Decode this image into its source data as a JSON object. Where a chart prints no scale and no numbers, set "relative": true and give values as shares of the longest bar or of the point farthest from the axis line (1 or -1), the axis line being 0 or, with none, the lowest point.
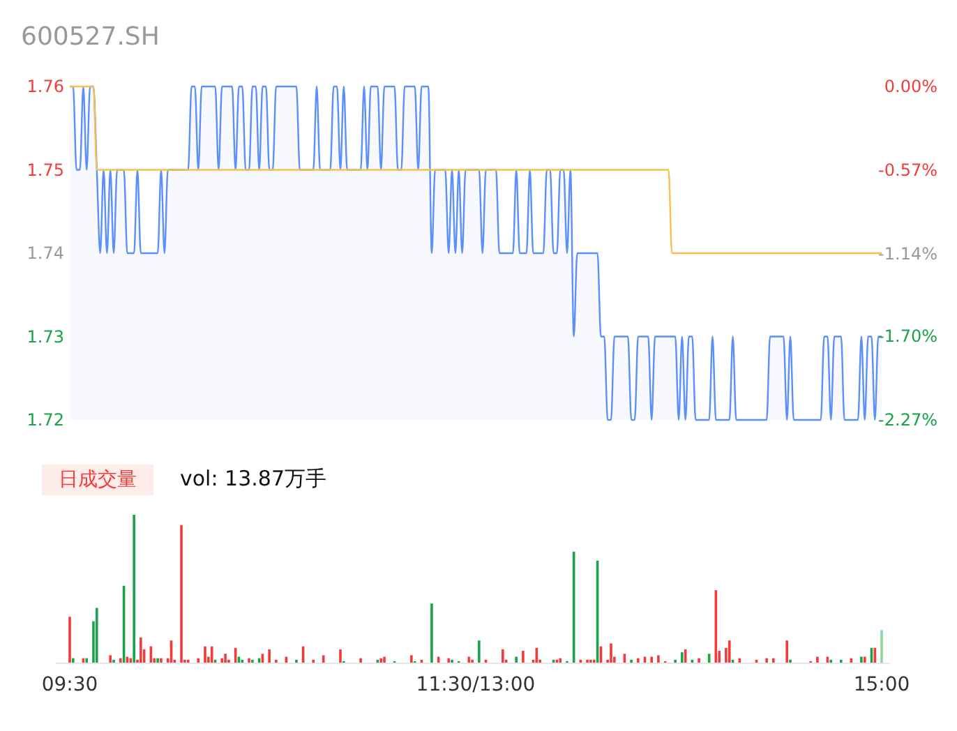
{
  "chart_data": [
    {
      "type": "line",
      "title": "600527.SH",
      "ylim": [
        1.72,
        1.76
      ],
      "yticks": [
        1.72,
        1.73,
        1.74,
        1.75,
        1.76
      ],
      "y2lim": [
        -2.27,
        0
      ],
      "y2ticks": [
        {
          "value": -2.27,
          "label": "-2.27%"
        },
        {
          "value": -1.7,
          "label": "-1.70%"
        },
        {
          "value": -1.14,
          "label": "-1.14%"
        },
        {
          "value": -0.57,
          "label": "-0.57%"
        },
        {
          "value": 0,
          "label": "0.00%"
        }
      ],
      "categories": [
        null,
        null,
        null,
        null,
        null,
        null,
        null,
        null,
        null,
        null,
        null,
        null,
        null,
        null,
        null,
        null,
        null,
        null,
        null,
        null,
        null,
        null,
        null,
        null,
        null,
        null,
        null,
        null,
        null,
        null,
        null,
        null,
        null,
        null,
        null,
        null,
        null,
        null,
        null,
        null,
        null,
        null,
        null,
        null,
        null,
        null,
        null,
        null,
        null,
        null,
        null,
        null,
        null,
        null,
        null,
        null,
        null,
        null,
        null,
        null,
        null,
        null,
        null,
        null,
        null,
        null,
        null,
        null,
        null,
        null,
        null,
        null,
        null,
        null,
        null,
        null,
        null,
        null,
        null,
        null,
        null,
        null,
        null,
        null,
        null,
        null,
        null,
        null,
        null,
        null,
        null,
        null,
        null,
        null,
        null,
        null,
        null,
        null,
        null,
        null,
        null,
        null,
        null,
        null,
        null,
        null,
        null,
        null,
        null,
        null,
        null,
        null,
        null,
        null,
        null,
        null,
        null,
        null,
        null,
        null,
        null,
        null,
        null,
        null,
        null,
        null,
        null,
        null,
        null,
        null,
        null,
        null,
        null,
        null,
        null,
        null,
        null,
        null,
        null,
        null,
        null,
        null,
        null,
        null,
        null,
        null,
        null,
        null,
        null,
        null,
        null,
        null,
        null,
        null,
        null,
        null,
        null,
        null,
        null,
        null,
        null,
        null,
        null,
        null,
        null,
        null,
        null,
        null,
        null,
        null,
        null,
        null,
        null,
        null,
        null,
        null,
        null,
        null,
        null,
        null,
        null,
        null,
        null,
        null,
        null,
        null,
        null,
        null,
        null,
        null,
        null,
        null,
        null,
        null,
        null,
        null,
        null,
        null,
        null,
        null,
        null,
        null,
        null,
        null,
        null,
        null,
        null,
        null,
        null,
        null,
        null,
        null,
        null,
        null,
        null,
        null,
        null,
        null,
        null,
        null,
        null,
        null,
        null,
        null,
        null,
        null,
        null,
        null,
        null,
        null,
        null,
        null,
        null,
        null,
        null,
        null,
        null,
        null,
        null,
        null,
        null
      ],
      "series": [
        {
          "type": "area",
          "color": "#5b8ff9",
          "values": [
            1.76,
            1.76,
            1.75,
            1.75,
            1.76,
            1.75,
            1.76,
            1.76,
            1.75,
            1.74,
            1.75,
            1.74,
            1.75,
            1.74,
            1.75,
            1.75,
            1.75,
            1.74,
            1.74,
            1.74,
            1.75,
            1.74,
            1.74,
            1.74,
            1.74,
            1.74,
            1.74,
            1.75,
            1.74,
            1.75,
            1.75,
            1.75,
            1.75,
            1.75,
            1.75,
            1.75,
            1.76,
            1.76,
            1.75,
            1.76,
            1.76,
            1.76,
            1.76,
            1.76,
            1.75,
            1.76,
            1.76,
            1.76,
            1.76,
            1.75,
            1.76,
            1.76,
            1.75,
            1.75,
            1.76,
            1.76,
            1.75,
            1.76,
            1.76,
            1.75,
            1.75,
            1.76,
            1.76,
            1.76,
            1.76,
            1.76,
            1.76,
            1.76,
            1.75,
            1.75,
            1.75,
            1.75,
            1.75,
            1.76,
            1.75,
            1.75,
            1.75,
            1.75,
            1.76,
            1.76,
            1.75,
            1.76,
            1.75,
            1.75,
            1.75,
            1.75,
            1.75,
            1.76,
            1.75,
            1.76,
            1.76,
            1.76,
            1.75,
            1.76,
            1.76,
            1.76,
            1.76,
            1.75,
            1.75,
            1.76,
            1.76,
            1.76,
            1.76,
            1.75,
            1.76,
            1.76,
            1.76,
            1.74,
            1.75,
            1.75,
            1.75,
            1.75,
            1.74,
            1.75,
            1.74,
            1.75,
            1.74,
            1.75,
            1.75,
            1.75,
            1.75,
            1.75,
            1.74,
            1.75,
            1.75,
            1.75,
            1.75,
            1.74,
            1.74,
            1.74,
            1.74,
            1.74,
            1.75,
            1.74,
            1.74,
            1.74,
            1.75,
            1.74,
            1.74,
            1.74,
            1.74,
            1.75,
            1.75,
            1.74,
            1.74,
            1.75,
            1.75,
            1.74,
            1.75,
            1.73,
            1.74,
            1.74,
            1.74,
            1.74,
            1.74,
            1.74,
            1.74,
            1.73,
            1.73,
            1.72,
            1.72,
            1.73,
            1.73,
            1.73,
            1.73,
            1.73,
            1.72,
            1.72,
            1.73,
            1.73,
            1.73,
            1.73,
            1.72,
            1.73,
            1.73,
            1.73,
            1.73,
            1.73,
            1.73,
            1.73,
            1.72,
            1.73,
            1.72,
            1.73,
            1.73,
            1.72,
            1.72,
            1.72,
            1.72,
            1.72,
            1.73,
            1.72,
            1.72,
            1.72,
            1.72,
            1.72,
            1.73,
            1.72,
            1.72,
            1.72,
            1.72,
            1.72,
            1.72,
            1.72,
            1.72,
            1.72,
            1.72,
            1.73,
            1.73,
            1.73,
            1.73,
            1.73,
            1.72,
            1.73,
            1.72,
            1.72,
            1.72,
            1.72,
            1.72,
            1.72,
            1.72,
            1.72,
            1.72,
            1.73,
            1.73,
            1.72,
            1.73,
            1.73,
            1.73,
            1.72,
            1.72,
            1.72,
            1.72,
            1.72,
            1.73,
            1.72,
            1.73,
            1.73,
            1.72,
            1.73,
            1.73
          ]
        },
        {
          "type": "line",
          "color": "#f8c04e",
          "values": [
            1.76,
            1.76,
            1.76,
            1.76,
            1.76,
            1.76,
            1.76,
            1.76,
            1.75,
            1.75,
            1.75,
            1.75,
            1.75,
            1.75,
            1.75,
            1.75,
            1.75,
            1.75,
            1.75,
            1.75,
            1.75,
            1.75,
            1.75,
            1.75,
            1.75,
            1.75,
            1.75,
            1.75,
            1.75,
            1.75,
            1.75,
            1.75,
            1.75,
            1.75,
            1.75,
            1.75,
            1.75,
            1.75,
            1.75,
            1.75,
            1.75,
            1.75,
            1.75,
            1.75,
            1.75,
            1.75,
            1.75,
            1.75,
            1.75,
            1.75,
            1.75,
            1.75,
            1.75,
            1.75,
            1.75,
            1.75,
            1.75,
            1.75,
            1.75,
            1.75,
            1.75,
            1.75,
            1.75,
            1.75,
            1.75,
            1.75,
            1.75,
            1.75,
            1.75,
            1.75,
            1.75,
            1.75,
            1.75,
            1.75,
            1.75,
            1.75,
            1.75,
            1.75,
            1.75,
            1.75,
            1.75,
            1.75,
            1.75,
            1.75,
            1.75,
            1.75,
            1.75,
            1.75,
            1.75,
            1.75,
            1.75,
            1.75,
            1.75,
            1.75,
            1.75,
            1.75,
            1.75,
            1.75,
            1.75,
            1.75,
            1.75,
            1.75,
            1.75,
            1.75,
            1.75,
            1.75,
            1.75,
            1.75,
            1.75,
            1.75,
            1.75,
            1.75,
            1.75,
            1.75,
            1.75,
            1.75,
            1.75,
            1.75,
            1.75,
            1.75,
            1.75,
            1.75,
            1.75,
            1.75,
            1.75,
            1.75,
            1.75,
            1.75,
            1.75,
            1.75,
            1.75,
            1.75,
            1.75,
            1.75,
            1.75,
            1.75,
            1.75,
            1.75,
            1.75,
            1.75,
            1.75,
            1.75,
            1.75,
            1.75,
            1.75,
            1.75,
            1.75,
            1.75,
            1.75,
            1.75,
            1.75,
            1.75,
            1.75,
            1.75,
            1.75,
            1.75,
            1.75,
            1.75,
            1.75,
            1.75,
            1.75,
            1.75,
            1.75,
            1.75,
            1.75,
            1.75,
            1.75,
            1.75,
            1.75,
            1.75,
            1.75,
            1.75,
            1.75,
            1.75,
            1.75,
            1.75,
            1.75,
            1.75,
            1.74,
            1.74,
            1.74,
            1.74,
            1.74,
            1.74,
            1.74,
            1.74,
            1.74,
            1.74,
            1.74,
            1.74,
            1.74,
            1.74,
            1.74,
            1.74,
            1.74,
            1.74,
            1.74,
            1.74,
            1.74,
            1.74,
            1.74,
            1.74,
            1.74,
            1.74,
            1.74,
            1.74,
            1.74,
            1.74,
            1.74,
            1.74,
            1.74,
            1.74,
            1.74,
            1.74,
            1.74,
            1.74,
            1.74,
            1.74,
            1.74,
            1.74,
            1.74,
            1.74,
            1.74,
            1.74,
            1.74,
            1.74,
            1.74,
            1.74,
            1.74,
            1.74,
            1.74,
            1.74,
            1.74,
            1.74,
            1.74,
            1.74,
            1.74,
            1.74,
            1.74,
            1.74,
            1.74
          ]
        }
      ]
    },
    {
      "type": "bar",
      "title": "日成交量",
      "subtitle": "vol: 13.87万手",
      "relative": true,
      "categories": [
        "09:30",
        null,
        null,
        null,
        null,
        null,
        null,
        null,
        null,
        null,
        null,
        null,
        null,
        null,
        null,
        null,
        null,
        null,
        null,
        null,
        null,
        null,
        null,
        null,
        null,
        null,
        null,
        null,
        null,
        null,
        null,
        null,
        null,
        null,
        null,
        null,
        null,
        null,
        null,
        null,
        null,
        null,
        null,
        null,
        null,
        null,
        null,
        null,
        null,
        null,
        null,
        null,
        null,
        null,
        null,
        null,
        null,
        null,
        null,
        null,
        null,
        null,
        null,
        null,
        null,
        null,
        null,
        null,
        null,
        null,
        null,
        null,
        null,
        null,
        null,
        null,
        null,
        null,
        null,
        null,
        null,
        null,
        null,
        null,
        null,
        null,
        null,
        null,
        null,
        null,
        null,
        null,
        null,
        null,
        null,
        null,
        null,
        null,
        null,
        null,
        null,
        null,
        null,
        null,
        null,
        null,
        null,
        null,
        null,
        null,
        null,
        null,
        null,
        null,
        null,
        null,
        null,
        null,
        null,
        null,
        "11:30/13:00",
        null,
        null,
        null,
        null,
        null,
        null,
        null,
        null,
        null,
        null,
        null,
        null,
        null,
        null,
        null,
        null,
        null,
        null,
        null,
        null,
        null,
        null,
        null,
        null,
        null,
        null,
        null,
        null,
        null,
        null,
        null,
        null,
        null,
        null,
        null,
        null,
        null,
        null,
        null,
        null,
        null,
        null,
        null,
        null,
        null,
        null,
        null,
        null,
        null,
        null,
        null,
        null,
        null,
        null,
        null,
        null,
        null,
        null,
        null,
        null,
        null,
        null,
        null,
        null,
        null,
        null,
        null,
        null,
        null,
        null,
        null,
        null,
        null,
        null,
        null,
        null,
        null,
        null,
        null,
        null,
        null,
        null,
        null,
        null,
        null,
        null,
        null,
        null,
        null,
        null,
        null,
        null,
        null,
        null,
        null,
        null,
        null,
        null,
        null,
        null,
        null,
        null,
        null,
        null,
        null,
        null,
        null,
        null,
        null,
        null,
        null,
        null,
        null,
        null,
        null,
        null,
        null,
        null,
        null,
        "15:00"
      ],
      "values": [
        0.31,
        0.03,
        null,
        null,
        0.03,
        0.03,
        null,
        0.28,
        0.37,
        null,
        null,
        null,
        0.05,
        0.02,
        null,
        0.03,
        0.52,
        0.04,
        0.03,
        1,
        0.02,
        0.17,
        0.09,
        null,
        0.11,
        0.03,
        0.03,
        0.03,
        null,
        0.03,
        0.15,
        0.02,
        null,
        0.93,
        0.02,
        0.02,
        null,
        null,
        0.03,
        null,
        0.11,
        0.04,
        0.11,
        0.02,
        null,
        0.03,
        0.06,
        0.02,
        null,
        0.1,
        0.04,
        0.02,
        null,
        0.03,
        0.02,
        null,
        0.03,
        0.06,
        null,
        0.09,
        null,
        0.02,
        null,
        null,
        0.04,
        null,
        null,
        0.02,
        null,
        0.11,
        null,
        null,
        0.02,
        null,
        null,
        0.05,
        null,
        null,
        null,
        null,
        0.09,
        0.01,
        null,
        null,
        null,
        null,
        0.03,
        null,
        null,
        null,
        null,
        0.02,
        0.03,
        0.04,
        null,
        null,
        0.01,
        null,
        null,
        null,
        null,
        0.05,
        0.01,
        null,
        0.02,
        null,
        null,
        0.4,
        null,
        0.04,
        null,
        null,
        0.03,
        0.02,
        null,
        0.01,
        null,
        null,
        0.04,
        0.02,
        null,
        0.15,
        null,
        0.02,
        null,
        null,
        null,
        null,
        0.09,
        0.02,
        null,
        null,
        0.04,
        null,
        0.08,
        null,
        null,
        0.02,
        0.1,
        0.02,
        null,
        null,
        null,
        0.02,
        0.02,
        0.03,
        null,
        0.01,
        null,
        0.75,
        null,
        0.02,
        null,
        0.02,
        0.02,
        0.02,
        0.69,
        0.11,
        null,
        0.02,
        0.13,
        0.04,
        null,
        null,
        0.06,
        null,
        0.02,
        null,
        0.03,
        null,
        0.04,
        null,
        0.04,
        null,
        0.05,
        null,
        0.01,
        null,
        null,
        0.02,
        null,
        0.07,
        0.09,
        null,
        0.02,
        null,
        0.03,
        null,
        null,
        0.06,
        null,
        0.49,
        0.08,
        null,
        0.1,
        0.15,
        0.02,
        null,
        0.03,
        null,
        null,
        null,
        null,
        0.02,
        null,
        null,
        0.03,
        null,
        0.03,
        null,
        null,
        null,
        0.15,
        0.02,
        null,
        null,
        null,
        null,
        null,
        0.01,
        null,
        0.04,
        null,
        null,
        0.04,
        0.02,
        null,
        null,
        0.02,
        null,
        null,
        0.03,
        null,
        null,
        0.04,
        0.04,
        null,
        0.1,
        0.1,
        null,
        0.22
      ],
      "colors": [
        "#f23c3c",
        "#1aa34a",
        null,
        null,
        "#f23c3c",
        "#1aa34a",
        null,
        "#1aa34a",
        "#1aa34a",
        null,
        null,
        null,
        "#f23c3c",
        "#1aa34a",
        null,
        "#f23c3c",
        "#1aa34a",
        "#f23c3c",
        "#f23c3c",
        "#1aa34a",
        "#f23c3c",
        "#f23c3c",
        "#f23c3c",
        null,
        "#f23c3c",
        "#f23c3c",
        "#1aa34a",
        "#f23c3c",
        null,
        "#f23c3c",
        "#f23c3c",
        "#f23c3c",
        null,
        "#f23c3c",
        "#f23c3c",
        "#f23c3c",
        null,
        null,
        "#f23c3c",
        null,
        "#f23c3c",
        "#f23c3c",
        "#f23c3c",
        "#1aa34a",
        null,
        "#f23c3c",
        "#f23c3c",
        "#f23c3c",
        null,
        "#f23c3c",
        "#1aa34a",
        "#1aa34a",
        null,
        "#f23c3c",
        "#1aa34a",
        null,
        "#1aa34a",
        "#f23c3c",
        null,
        "#f23c3c",
        null,
        "#f23c3c",
        null,
        null,
        "#f23c3c",
        null,
        null,
        "#1aa34a",
        null,
        "#f23c3c",
        null,
        null,
        "#f23c3c",
        null,
        null,
        "#f23c3c",
        null,
        null,
        null,
        null,
        "#f23c3c",
        "#1aa34a",
        null,
        null,
        null,
        null,
        "#f23c3c",
        null,
        null,
        null,
        null,
        "#1aa34a",
        "#f23c3c",
        "#f23c3c",
        null,
        null,
        "#1aa34a",
        null,
        null,
        null,
        null,
        "#f23c3c",
        "#1aa34a",
        null,
        "#f23c3c",
        null,
        null,
        "#1aa34a",
        null,
        "#f23c3c",
        null,
        null,
        "#f23c3c",
        "#1aa34a",
        null,
        "#1aa34a",
        null,
        null,
        "#f23c3c",
        "#f23c3c",
        null,
        "#1aa34a",
        null,
        "#f23c3c",
        null,
        null,
        null,
        null,
        "#f23c3c",
        "#f23c3c",
        null,
        null,
        "#1aa34a",
        null,
        "#f23c3c",
        null,
        null,
        "#f23c3c",
        "#f23c3c",
        "#f23c3c",
        null,
        null,
        null,
        "#1aa34a",
        "#f23c3c",
        "#f23c3c",
        null,
        "#1aa34a",
        null,
        "#1aa34a",
        null,
        "#f23c3c",
        null,
        "#f23c3c",
        "#f23c3c",
        "#f23c3c",
        "#1aa34a",
        "#f23c3c",
        null,
        "#f23c3c",
        "#f23c3c",
        "#f23c3c",
        null,
        null,
        "#f23c3c",
        null,
        "#1aa34a",
        null,
        "#f23c3c",
        null,
        "#f23c3c",
        null,
        "#f23c3c",
        null,
        "#f23c3c",
        null,
        "#f23c3c",
        null,
        null,
        "#1aa34a",
        null,
        "#1aa34a",
        "#f23c3c",
        null,
        "#1aa34a",
        null,
        "#f23c3c",
        null,
        null,
        "#1aa34a",
        null,
        "#f23c3c",
        "#f23c3c",
        null,
        "#f23c3c",
        "#f23c3c",
        "#1aa34a",
        null,
        "#f23c3c",
        null,
        null,
        null,
        null,
        "#f23c3c",
        null,
        null,
        "#f23c3c",
        null,
        "#f23c3c",
        null,
        null,
        null,
        "#f23c3c",
        "#1aa34a",
        null,
        null,
        null,
        null,
        null,
        "#f23c3c",
        null,
        "#f23c3c",
        null,
        null,
        "#f23c3c",
        "#1aa34a",
        null,
        null,
        "#1aa34a",
        null,
        null,
        "#f23c3c",
        null,
        null,
        "#1aa34a",
        "#f23c3c",
        null,
        "#1aa34a",
        "#f23c3c",
        null,
        "#8fd4a0"
      ]
    }
  ]
}
